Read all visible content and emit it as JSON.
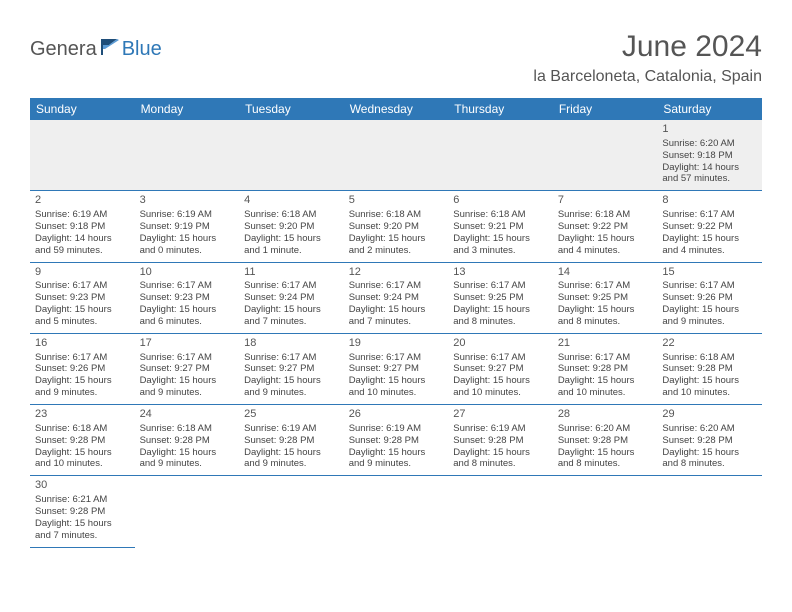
{
  "logo": {
    "part1": "Genera",
    "part2": "Blue"
  },
  "title": "June 2024",
  "location": "la Barceloneta, Catalonia, Spain",
  "colors": {
    "header_bg": "#2f78b7",
    "header_text": "#ffffff",
    "border": "#2f78b7",
    "daynum_text": "#555555",
    "detail_text": "#444444",
    "empty_bg": "#efefef",
    "logo_gray": "#555555",
    "logo_blue": "#2f78b7"
  },
  "weekdays": [
    "Sunday",
    "Monday",
    "Tuesday",
    "Wednesday",
    "Thursday",
    "Friday",
    "Saturday"
  ],
  "weeks": [
    [
      null,
      null,
      null,
      null,
      null,
      null,
      {
        "n": "1",
        "rise": "Sunrise: 6:20 AM",
        "set": "Sunset: 9:18 PM",
        "day": "Daylight: 14 hours and 57 minutes."
      }
    ],
    [
      {
        "n": "2",
        "rise": "Sunrise: 6:19 AM",
        "set": "Sunset: 9:18 PM",
        "day": "Daylight: 14 hours and 59 minutes."
      },
      {
        "n": "3",
        "rise": "Sunrise: 6:19 AM",
        "set": "Sunset: 9:19 PM",
        "day": "Daylight: 15 hours and 0 minutes."
      },
      {
        "n": "4",
        "rise": "Sunrise: 6:18 AM",
        "set": "Sunset: 9:20 PM",
        "day": "Daylight: 15 hours and 1 minute."
      },
      {
        "n": "5",
        "rise": "Sunrise: 6:18 AM",
        "set": "Sunset: 9:20 PM",
        "day": "Daylight: 15 hours and 2 minutes."
      },
      {
        "n": "6",
        "rise": "Sunrise: 6:18 AM",
        "set": "Sunset: 9:21 PM",
        "day": "Daylight: 15 hours and 3 minutes."
      },
      {
        "n": "7",
        "rise": "Sunrise: 6:18 AM",
        "set": "Sunset: 9:22 PM",
        "day": "Daylight: 15 hours and 4 minutes."
      },
      {
        "n": "8",
        "rise": "Sunrise: 6:17 AM",
        "set": "Sunset: 9:22 PM",
        "day": "Daylight: 15 hours and 4 minutes."
      }
    ],
    [
      {
        "n": "9",
        "rise": "Sunrise: 6:17 AM",
        "set": "Sunset: 9:23 PM",
        "day": "Daylight: 15 hours and 5 minutes."
      },
      {
        "n": "10",
        "rise": "Sunrise: 6:17 AM",
        "set": "Sunset: 9:23 PM",
        "day": "Daylight: 15 hours and 6 minutes."
      },
      {
        "n": "11",
        "rise": "Sunrise: 6:17 AM",
        "set": "Sunset: 9:24 PM",
        "day": "Daylight: 15 hours and 7 minutes."
      },
      {
        "n": "12",
        "rise": "Sunrise: 6:17 AM",
        "set": "Sunset: 9:24 PM",
        "day": "Daylight: 15 hours and 7 minutes."
      },
      {
        "n": "13",
        "rise": "Sunrise: 6:17 AM",
        "set": "Sunset: 9:25 PM",
        "day": "Daylight: 15 hours and 8 minutes."
      },
      {
        "n": "14",
        "rise": "Sunrise: 6:17 AM",
        "set": "Sunset: 9:25 PM",
        "day": "Daylight: 15 hours and 8 minutes."
      },
      {
        "n": "15",
        "rise": "Sunrise: 6:17 AM",
        "set": "Sunset: 9:26 PM",
        "day": "Daylight: 15 hours and 9 minutes."
      }
    ],
    [
      {
        "n": "16",
        "rise": "Sunrise: 6:17 AM",
        "set": "Sunset: 9:26 PM",
        "day": "Daylight: 15 hours and 9 minutes."
      },
      {
        "n": "17",
        "rise": "Sunrise: 6:17 AM",
        "set": "Sunset: 9:27 PM",
        "day": "Daylight: 15 hours and 9 minutes."
      },
      {
        "n": "18",
        "rise": "Sunrise: 6:17 AM",
        "set": "Sunset: 9:27 PM",
        "day": "Daylight: 15 hours and 9 minutes."
      },
      {
        "n": "19",
        "rise": "Sunrise: 6:17 AM",
        "set": "Sunset: 9:27 PM",
        "day": "Daylight: 15 hours and 10 minutes."
      },
      {
        "n": "20",
        "rise": "Sunrise: 6:17 AM",
        "set": "Sunset: 9:27 PM",
        "day": "Daylight: 15 hours and 10 minutes."
      },
      {
        "n": "21",
        "rise": "Sunrise: 6:17 AM",
        "set": "Sunset: 9:28 PM",
        "day": "Daylight: 15 hours and 10 minutes."
      },
      {
        "n": "22",
        "rise": "Sunrise: 6:18 AM",
        "set": "Sunset: 9:28 PM",
        "day": "Daylight: 15 hours and 10 minutes."
      }
    ],
    [
      {
        "n": "23",
        "rise": "Sunrise: 6:18 AM",
        "set": "Sunset: 9:28 PM",
        "day": "Daylight: 15 hours and 10 minutes."
      },
      {
        "n": "24",
        "rise": "Sunrise: 6:18 AM",
        "set": "Sunset: 9:28 PM",
        "day": "Daylight: 15 hours and 9 minutes."
      },
      {
        "n": "25",
        "rise": "Sunrise: 6:19 AM",
        "set": "Sunset: 9:28 PM",
        "day": "Daylight: 15 hours and 9 minutes."
      },
      {
        "n": "26",
        "rise": "Sunrise: 6:19 AM",
        "set": "Sunset: 9:28 PM",
        "day": "Daylight: 15 hours and 9 minutes."
      },
      {
        "n": "27",
        "rise": "Sunrise: 6:19 AM",
        "set": "Sunset: 9:28 PM",
        "day": "Daylight: 15 hours and 8 minutes."
      },
      {
        "n": "28",
        "rise": "Sunrise: 6:20 AM",
        "set": "Sunset: 9:28 PM",
        "day": "Daylight: 15 hours and 8 minutes."
      },
      {
        "n": "29",
        "rise": "Sunrise: 6:20 AM",
        "set": "Sunset: 9:28 PM",
        "day": "Daylight: 15 hours and 8 minutes."
      }
    ],
    [
      {
        "n": "30",
        "rise": "Sunrise: 6:21 AM",
        "set": "Sunset: 9:28 PM",
        "day": "Daylight: 15 hours and 7 minutes."
      },
      null,
      null,
      null,
      null,
      null,
      null
    ]
  ]
}
